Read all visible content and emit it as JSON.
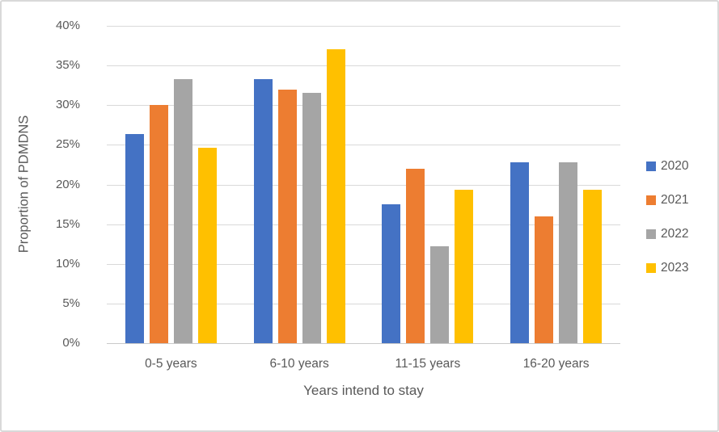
{
  "chart_data": {
    "type": "bar",
    "categories": [
      "0-5 years",
      "6-10 years",
      "11-15 years",
      "16-20 years"
    ],
    "series": [
      {
        "name": "2020",
        "color": "#4472C4",
        "values": [
          26.4,
          33.3,
          17.5,
          22.8
        ]
      },
      {
        "name": "2021",
        "color": "#ED7D31",
        "values": [
          30.0,
          32.0,
          22.0,
          16.0
        ]
      },
      {
        "name": "2022",
        "color": "#A5A5A5",
        "values": [
          33.3,
          31.6,
          12.2,
          22.8
        ]
      },
      {
        "name": "2023",
        "color": "#FFC000",
        "values": [
          24.6,
          37.0,
          19.3,
          19.3
        ]
      }
    ],
    "title": "",
    "xlabel": "Years intend to stay",
    "ylabel": "Proportion of PDMDNS",
    "ylim": [
      0,
      40
    ],
    "ytick_step": 5,
    "ytick_suffix": "%",
    "grid": true,
    "legend_position": "right",
    "grid_color": "#D9D9D9",
    "text_color": "#595959",
    "background_color": "#FFFFFF"
  }
}
